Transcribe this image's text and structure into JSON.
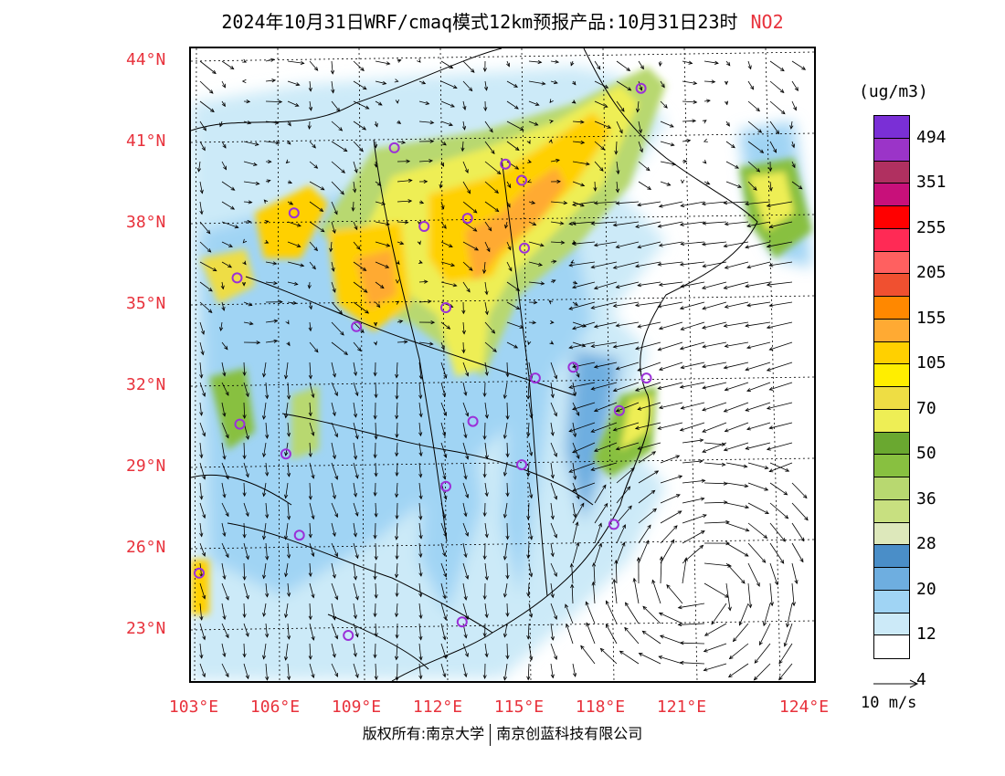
{
  "title": {
    "main": "2024年10月31日WRF/cmaq模式12km预报产品:10月31日23时",
    "species": "NO2"
  },
  "axes": {
    "lat_labels": [
      "44°N",
      "41°N",
      "38°N",
      "35°N",
      "32°N",
      "29°N",
      "26°N",
      "23°N"
    ],
    "lon_labels": [
      "103°E",
      "106°E",
      "109°E",
      "112°E",
      "115°E",
      "118°E",
      "121°E",
      "124°E"
    ]
  },
  "colorbar": {
    "unit": "(ug/m3)",
    "labels": [
      "494",
      "351",
      "255",
      "205",
      "155",
      "105",
      "70",
      "50",
      "36",
      "28",
      "20",
      "12",
      "4"
    ],
    "colors": [
      "#7a2fd6",
      "#9b34c8",
      "#b03060",
      "#c8107a",
      "#ff0000",
      "#ff2a55",
      "#ff6060",
      "#f05030",
      "#ff8800",
      "#ffaa33",
      "#ffd000",
      "#ffee00",
      "#eedd44",
      "#eeee55",
      "#6aa830",
      "#88c040",
      "#b8d870",
      "#c8e080",
      "#dde8bb",
      "#4a8ec8",
      "#6eaee0",
      "#a0d4f4",
      "#cceaf8",
      "#ffffff"
    ]
  },
  "wind_reference": "10 m/s",
  "footer": {
    "left": "版权所有:南京大学",
    "right": "南京创蓝科技有限公司"
  },
  "cities": [
    {
      "lon": 119.4,
      "lat": 43.0
    },
    {
      "lon": 110.3,
      "lat": 40.8
    },
    {
      "lon": 114.4,
      "lat": 40.2
    },
    {
      "lon": 115.0,
      "lat": 39.6
    },
    {
      "lon": 106.6,
      "lat": 38.4
    },
    {
      "lon": 113.0,
      "lat": 38.2
    },
    {
      "lon": 111.4,
      "lat": 37.9
    },
    {
      "lon": 115.1,
      "lat": 37.1
    },
    {
      "lon": 104.5,
      "lat": 36.0
    },
    {
      "lon": 112.2,
      "lat": 34.9
    },
    {
      "lon": 108.9,
      "lat": 34.2
    },
    {
      "lon": 116.9,
      "lat": 32.7
    },
    {
      "lon": 115.5,
      "lat": 32.3
    },
    {
      "lon": 119.6,
      "lat": 32.3
    },
    {
      "lon": 118.6,
      "lat": 31.1
    },
    {
      "lon": 104.6,
      "lat": 30.6
    },
    {
      "lon": 113.2,
      "lat": 30.7
    },
    {
      "lon": 106.3,
      "lat": 29.5
    },
    {
      "lon": 115.0,
      "lat": 29.1
    },
    {
      "lon": 112.2,
      "lat": 28.3
    },
    {
      "lon": 106.8,
      "lat": 26.5
    },
    {
      "lon": 118.4,
      "lat": 26.9
    },
    {
      "lon": 103.1,
      "lat": 25.1
    },
    {
      "lon": 108.6,
      "lat": 22.8
    },
    {
      "lon": 112.8,
      "lat": 23.3
    }
  ]
}
